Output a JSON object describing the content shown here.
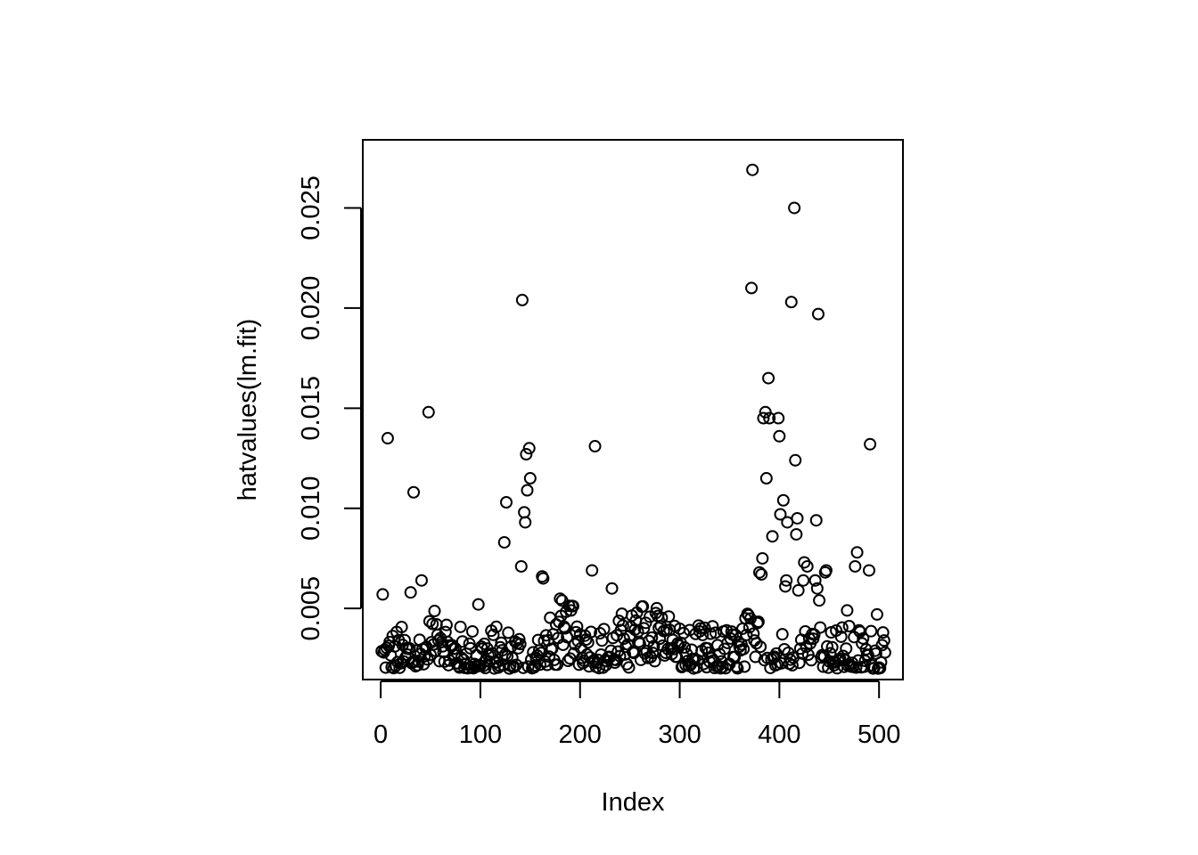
{
  "chart_data": {
    "type": "scatter",
    "title": "",
    "xlabel": "Index",
    "ylabel": "hatvalues(lm.fit)",
    "xlim": [
      -18,
      524
    ],
    "ylim": [
      0.00145,
      0.0284
    ],
    "x_ticks": [
      0,
      100,
      200,
      300,
      400,
      500
    ],
    "x_tick_labels": [
      "0",
      "100",
      "200",
      "300",
      "400",
      "500"
    ],
    "y_ticks": [
      0.005,
      0.01,
      0.015,
      0.02,
      0.025
    ],
    "y_tick_labels": [
      "0.005",
      "0.010",
      "0.015",
      "0.020",
      "0.025"
    ],
    "grid": false,
    "legend": "none",
    "marker": "open-circle",
    "color": "#000000",
    "highlights": [
      {
        "x": 7,
        "y": 0.0135
      },
      {
        "x": 33,
        "y": 0.0108
      },
      {
        "x": 48,
        "y": 0.0148
      },
      {
        "x": 41,
        "y": 0.0064
      },
      {
        "x": 30,
        "y": 0.0058
      },
      {
        "x": 2,
        "y": 0.0057
      },
      {
        "x": 98,
        "y": 0.0052
      },
      {
        "x": 124,
        "y": 0.0083
      },
      {
        "x": 126,
        "y": 0.0103
      },
      {
        "x": 141,
        "y": 0.0071
      },
      {
        "x": 142,
        "y": 0.0204
      },
      {
        "x": 144,
        "y": 0.0098
      },
      {
        "x": 145,
        "y": 0.0093
      },
      {
        "x": 146,
        "y": 0.0127
      },
      {
        "x": 147,
        "y": 0.0109
      },
      {
        "x": 149,
        "y": 0.013
      },
      {
        "x": 150,
        "y": 0.0115
      },
      {
        "x": 162,
        "y": 0.0066
      },
      {
        "x": 163,
        "y": 0.0065
      },
      {
        "x": 215,
        "y": 0.0131
      },
      {
        "x": 212,
        "y": 0.0069
      },
      {
        "x": 232,
        "y": 0.006
      },
      {
        "x": 373,
        "y": 0.0269
      },
      {
        "x": 372,
        "y": 0.021
      },
      {
        "x": 384,
        "y": 0.0145
      },
      {
        "x": 386,
        "y": 0.0148
      },
      {
        "x": 389,
        "y": 0.0165
      },
      {
        "x": 390,
        "y": 0.0145
      },
      {
        "x": 387,
        "y": 0.0115
      },
      {
        "x": 393,
        "y": 0.0086
      },
      {
        "x": 383,
        "y": 0.0075
      },
      {
        "x": 380,
        "y": 0.0068
      },
      {
        "x": 382,
        "y": 0.0067
      },
      {
        "x": 412,
        "y": 0.0203
      },
      {
        "x": 415,
        "y": 0.025
      },
      {
        "x": 439,
        "y": 0.0197
      },
      {
        "x": 399,
        "y": 0.0145
      },
      {
        "x": 400,
        "y": 0.0136
      },
      {
        "x": 416,
        "y": 0.0124
      },
      {
        "x": 404,
        "y": 0.0104
      },
      {
        "x": 401,
        "y": 0.0097
      },
      {
        "x": 408,
        "y": 0.0093
      },
      {
        "x": 418,
        "y": 0.0095
      },
      {
        "x": 417,
        "y": 0.0087
      },
      {
        "x": 437,
        "y": 0.0094
      },
      {
        "x": 425,
        "y": 0.0073
      },
      {
        "x": 428,
        "y": 0.0071
      },
      {
        "x": 407,
        "y": 0.0064
      },
      {
        "x": 406,
        "y": 0.0061
      },
      {
        "x": 419,
        "y": 0.0059
      },
      {
        "x": 424,
        "y": 0.0064
      },
      {
        "x": 436,
        "y": 0.0064
      },
      {
        "x": 438,
        "y": 0.006
      },
      {
        "x": 440,
        "y": 0.0054
      },
      {
        "x": 446,
        "y": 0.0068
      },
      {
        "x": 447,
        "y": 0.0069
      },
      {
        "x": 478,
        "y": 0.0078
      },
      {
        "x": 476,
        "y": 0.0071
      },
      {
        "x": 490,
        "y": 0.0069
      },
      {
        "x": 491,
        "y": 0.0132
      },
      {
        "x": 468,
        "y": 0.0049
      },
      {
        "x": 498,
        "y": 0.0047
      },
      {
        "x": 504,
        "y": 0.0038
      },
      {
        "x": 505,
        "y": 0.0034
      },
      {
        "x": 506,
        "y": 0.0028
      }
    ]
  }
}
